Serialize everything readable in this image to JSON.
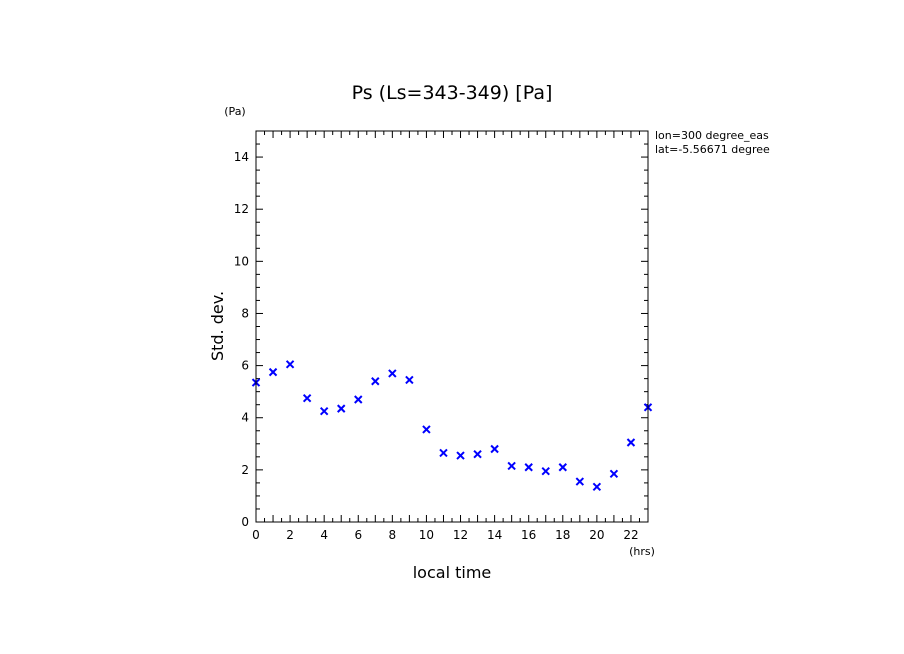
{
  "chart_data": {
    "type": "scatter",
    "title": "Ps (Ls=343-349) [Pa]",
    "xlabel": "local time",
    "ylabel": "Std. dev.",
    "x_unit": "(hrs)",
    "y_unit": "(Pa)",
    "xlim": [
      0,
      23
    ],
    "ylim": [
      0,
      15
    ],
    "x_ticks": [
      0,
      2,
      4,
      6,
      8,
      10,
      12,
      14,
      16,
      18,
      20,
      22
    ],
    "y_ticks": [
      0,
      2,
      4,
      6,
      8,
      10,
      12,
      14
    ],
    "annotations": [
      "lon=300 degree_eas",
      "lat=-5.56671 degree"
    ],
    "marker_color": "#0000ff",
    "marker": "x",
    "grid": false,
    "series": [
      {
        "x": [
          0,
          1,
          2,
          3,
          4,
          5,
          6,
          7,
          8,
          9,
          10,
          11,
          12,
          13,
          14,
          15,
          16,
          17,
          18,
          19,
          20,
          21,
          22,
          23
        ],
        "y": [
          5.35,
          5.75,
          6.05,
          4.75,
          4.25,
          4.35,
          4.7,
          5.4,
          5.7,
          5.45,
          3.55,
          2.65,
          2.55,
          2.6,
          2.8,
          2.15,
          2.1,
          1.95,
          2.1,
          1.55,
          1.35,
          1.85,
          3.05,
          4.4
        ]
      }
    ]
  }
}
